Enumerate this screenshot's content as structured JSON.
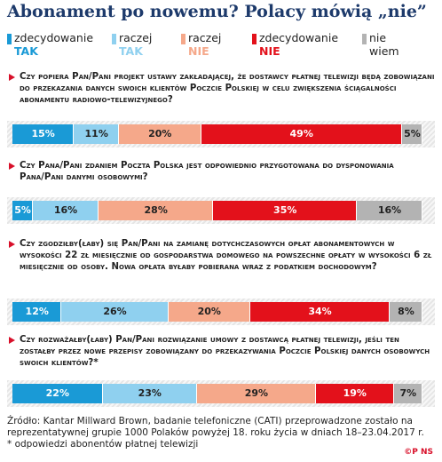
{
  "chart_data": {
    "type": "stacked-bar-100",
    "title": "Abonament po nowemu? Polacy mówią „nie”",
    "categories": [
      "Czy popiera Pan/Pani projekt ustawy zakładającej, że dostawcy płatnej telewizji będą zobowiązani do przekazania danych swoich klientów Poczcie Polskiej w celu zwiększenia ściągalności abonamentu radiowo-telewizyjnego?",
      "Czy Pana/Pani zdaniem Poczta Polska jest odpowiednio przygotowana do dysponowania Pana/Pani danymi osobowymi?",
      "Czy zgodziłby(łaby) się Pan/Pani na zamianę dotychczasowych opłat abonamentowych w wysokości 22 zł miesięcznie od gospodarstwa domowego na powszechne opłaty w wysokości 6 zł miesięcznie od osoby. Nowa opłata byłaby pobierana wraz z podatkiem dochodowym?",
      "Czy rozważałby(łaby) Pan/Pani rozwiązanie umowy z dostawcą płatnej telewizji, jeśli ten zostałby przez nowe przepisy zobowiązany do przekazywania Poczcie Polskiej danych osobowych swoich klientów?*"
    ],
    "series": [
      {
        "name": "zdecydowanie TAK",
        "color": "#1a9ad6",
        "values": [
          15,
          5,
          12,
          22
        ],
        "value_labels": [
          "15%",
          "5%",
          "12%",
          "22%"
        ]
      },
      {
        "name": "raczej TAK",
        "color": "#8fd0ef",
        "values": [
          11,
          16,
          26,
          23
        ],
        "value_labels": [
          "11%",
          "16%",
          "26%",
          "23%"
        ]
      },
      {
        "name": "raczej NIE",
        "color": "#f5a88a",
        "values": [
          20,
          28,
          20,
          29
        ],
        "value_labels": [
          "20%",
          "28%",
          "20%",
          "29%"
        ]
      },
      {
        "name": "zdecydowanie NIE",
        "color": "#e3111b",
        "values": [
          49,
          35,
          34,
          19
        ],
        "value_labels": [
          "49%",
          "35%",
          "34%",
          "19%"
        ]
      },
      {
        "name": "nie wiem",
        "color": "#b3b3b3",
        "values": [
          5,
          16,
          8,
          7
        ],
        "value_labels": [
          "5%",
          "16%",
          "8%",
          "7%"
        ]
      }
    ],
    "xlim": [
      0,
      100
    ],
    "source": "Źródło: Kantar Millward Brown, badanie telefoniczne (CATI) przeprowadzone zostało na reprezentatywnej grupie 1000 Polaków powyżej 18. roku życia w dniach 18–23.04.2017 r.",
    "footnote": "* odpowiedzi abonentów płatnej telewizji"
  }
}
